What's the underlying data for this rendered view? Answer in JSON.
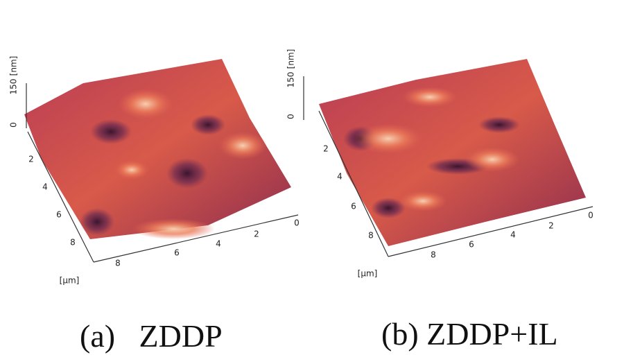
{
  "panels": [
    {
      "caption": "(a)   ZDDP",
      "z_unit": "[nm]",
      "z_ticks": [
        "0",
        "150"
      ],
      "left_ticks": [
        "2",
        "4",
        "6",
        "8"
      ],
      "bottom_ticks": [
        "8",
        "6",
        "4",
        "2",
        "0"
      ],
      "xy_unit": "[µm]"
    },
    {
      "caption": "(b) ZDDP+IL",
      "z_unit": "[nm]",
      "z_ticks": [
        "0",
        "150"
      ],
      "left_ticks": [
        "2",
        "4",
        "6",
        "8"
      ],
      "bottom_ticks": [
        "8",
        "6",
        "4",
        "2",
        "0"
      ],
      "xy_unit": "[µm]"
    }
  ]
}
